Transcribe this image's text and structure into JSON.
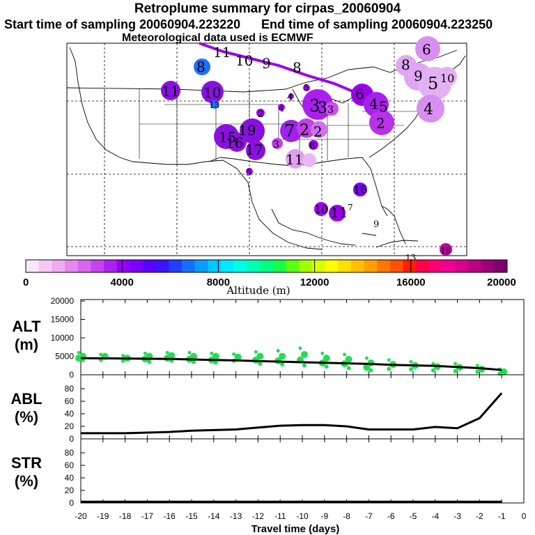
{
  "title": "Retroplume summary for cirpas_20060904",
  "start_label": "Start time of sampling 20060904.223220",
  "end_label": "End time of sampling 20060904.223250",
  "met_label": "Meteorological data used is ECMWF",
  "colorbar": {
    "label": "Altitude (m)",
    "ticks": [
      "0",
      "4000",
      "8000",
      "12000",
      "16000",
      "20000"
    ],
    "colors": [
      "#fbe6fb",
      "#f6c9f6",
      "#efaaf0",
      "#e688ee",
      "#d866ee",
      "#c344f0",
      "#ac22f4",
      "#9500f8",
      "#7b00fb",
      "#5a00ff",
      "#3c14ff",
      "#2040ff",
      "#1670ff",
      "#0a9cff",
      "#00c8ff",
      "#00e8ff",
      "#00ffe6",
      "#00ffb4",
      "#00ff82",
      "#16ff46",
      "#5cff14",
      "#a0ff00",
      "#d8ff00",
      "#ffff00",
      "#ffe000",
      "#ffc000",
      "#ffa000",
      "#ff7800",
      "#ff5000",
      "#ff2000",
      "#ff004a",
      "#ff0078",
      "#f00096",
      "#d8008c",
      "#bc0082",
      "#9c0078",
      "#7c006c"
    ]
  },
  "map_labels": [
    {
      "n": "11",
      "c": "#9b00ee"
    },
    {
      "n": "10",
      "c": "#9b00ee"
    },
    {
      "n": "9",
      "c": "#9b00ee"
    },
    {
      "n": "8",
      "c": "#9b00ee"
    },
    {
      "n": "8",
      "c": "#1e6eff"
    },
    {
      "n": "11",
      "c": "#8a10e0"
    },
    {
      "n": "10",
      "c": "#8a10e0"
    },
    {
      "n": "13",
      "c": "#1e6eff"
    },
    {
      "n": "6",
      "c": "#d88ff0"
    },
    {
      "n": "8",
      "c": "#d88ff0"
    },
    {
      "n": "9",
      "c": "#d88ff0"
    },
    {
      "n": "5",
      "c": "#d88ff0"
    },
    {
      "n": "10",
      "c": "#d88ff0"
    },
    {
      "n": "4",
      "c": "#d88ff0"
    },
    {
      "n": "6",
      "c": "#9b00ee"
    },
    {
      "n": "4",
      "c": "#9b00ee"
    },
    {
      "n": "5",
      "c": "#9b00ee"
    },
    {
      "n": "2",
      "c": "#9b00ee"
    },
    {
      "n": "3",
      "c": "#b830e8"
    },
    {
      "n": "4",
      "c": "#9b00ee"
    },
    {
      "n": "5",
      "c": "#9b00ee"
    },
    {
      "n": "4",
      "c": "#9b00ee"
    },
    {
      "n": "3",
      "c": "#b830e8"
    },
    {
      "n": "3",
      "c": "#b830e8"
    },
    {
      "n": "2",
      "c": "#c040e8"
    },
    {
      "n": "19",
      "c": "#8a10e0"
    },
    {
      "n": "15",
      "c": "#8a10e0"
    },
    {
      "n": "16",
      "c": "#8a10e0"
    },
    {
      "n": "17",
      "c": "#8a10e0"
    },
    {
      "n": "7",
      "c": "#a020ee"
    },
    {
      "n": "2",
      "c": "#c040e8"
    },
    {
      "n": "2",
      "c": "#c040e8"
    },
    {
      "n": "3",
      "c": "#c040e8"
    },
    {
      "n": "11",
      "c": "#e0a0f0"
    },
    {
      "n": "6",
      "c": "#9b00ee"
    },
    {
      "n": "5",
      "c": "#9b00ee"
    },
    {
      "n": "16",
      "c": "#7b00fb"
    },
    {
      "n": "10",
      "c": "#9b00ee"
    },
    {
      "n": "11",
      "c": "#9b00ee"
    },
    {
      "n": "7",
      "c": "#9b00ee"
    },
    {
      "n": "9",
      "c": "#9b00ee"
    },
    {
      "n": "18",
      "c": "#c000a0"
    },
    {
      "n": "13",
      "c": "#c000a0"
    }
  ],
  "chart_data": [
    {
      "type": "scatter",
      "panel": "ALT",
      "ylabel": "ALT\n(m)",
      "ylim": [
        0,
        20000
      ],
      "yticks": [
        0,
        5000,
        10000,
        15000,
        20000
      ],
      "xlim": [
        -20,
        0
      ],
      "median_line": {
        "x": [
          -20,
          -19,
          -18,
          -17,
          -16,
          -15,
          -14,
          -13,
          -12,
          -11,
          -10,
          -9,
          -8,
          -7,
          -6,
          -5,
          -4,
          -3,
          -2,
          -1
        ],
        "y": [
          4500,
          4450,
          4400,
          4350,
          4300,
          4150,
          4000,
          3900,
          3700,
          3550,
          3400,
          3250,
          3100,
          2950,
          2700,
          2550,
          2400,
          2100,
          1800,
          1300
        ]
      },
      "scatter_y": [
        [
          6000,
          5000,
          4500,
          4000
        ],
        [
          5500,
          5000,
          4000
        ],
        [
          5200,
          4500,
          3800
        ],
        [
          5800,
          5000,
          4300,
          3500
        ],
        [
          6000,
          5200,
          4500,
          3800
        ],
        [
          6000,
          5000,
          4200,
          3500
        ],
        [
          5800,
          5000,
          4000,
          3300
        ],
        [
          5600,
          4800,
          3800
        ],
        [
          6200,
          5000,
          4000,
          3000
        ],
        [
          6500,
          5000,
          3800,
          2800
        ],
        [
          7200,
          5500,
          4000,
          2500
        ],
        [
          5800,
          4500,
          3200,
          2200
        ],
        [
          5500,
          4200,
          3000,
          1800
        ],
        [
          4500,
          3200,
          2000,
          1200
        ],
        [
          4000,
          2800,
          1600
        ],
        [
          3500,
          2500,
          1500
        ],
        [
          3000,
          2200,
          1200
        ],
        [
          3000,
          2000,
          1000
        ],
        [
          2500,
          1500,
          800
        ],
        [
          1500,
          800,
          300
        ]
      ]
    },
    {
      "type": "line",
      "panel": "ABL",
      "ylabel": "ABL\n(%)",
      "ylim": [
        0,
        100
      ],
      "yticks": [
        0,
        20,
        40,
        60,
        80
      ],
      "x": [
        -20,
        -19,
        -18,
        -17,
        -16,
        -15,
        -14,
        -13,
        -12,
        -11,
        -10,
        -9,
        -8,
        -7,
        -6,
        -5,
        -4,
        -3,
        -2,
        -1
      ],
      "y": [
        9,
        9,
        9,
        10,
        11,
        13,
        14,
        15,
        18,
        21,
        22,
        22,
        20,
        15,
        15,
        15,
        19,
        17,
        33,
        73
      ]
    },
    {
      "type": "line",
      "panel": "STR",
      "ylabel": "STR\n(%)",
      "ylim": [
        0,
        100
      ],
      "yticks": [
        0,
        20,
        40,
        60,
        80
      ],
      "x": [
        -20,
        -19,
        -18,
        -17,
        -16,
        -15,
        -14,
        -13,
        -12,
        -11,
        -10,
        -9,
        -8,
        -7,
        -6,
        -5,
        -4,
        -3,
        -2,
        -1
      ],
      "y": [
        2,
        2,
        2,
        2,
        2,
        2,
        2,
        2,
        2,
        2,
        2,
        2,
        2,
        2,
        2,
        2,
        2,
        2,
        2,
        2
      ],
      "xlabel": "Travel time (days)",
      "xticks": [
        "-20",
        "-19",
        "-18",
        "-17",
        "-16",
        "-15",
        "-14",
        "-13",
        "-12",
        "-11",
        "-10",
        "-9",
        "-8",
        "-7",
        "-6",
        "-5",
        "-4",
        "-3",
        "-2",
        "-1",
        "0"
      ]
    }
  ],
  "colors": {
    "scatter": "#22dd55",
    "line": "#000000",
    "plume_path": "#9b00ee"
  }
}
